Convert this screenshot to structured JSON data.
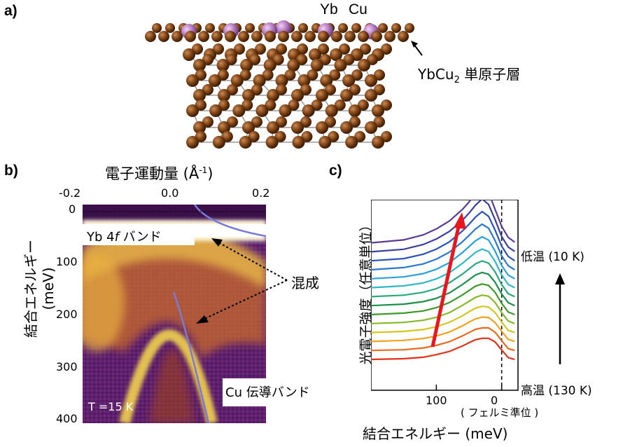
{
  "panel_a": {
    "label": "a)",
    "element_yb": "Yb",
    "element_cu": "Cu",
    "layer_label_prefix": "YbCu",
    "layer_label_sub": "2",
    "layer_label_suffix": " 単原子層",
    "colors": {
      "yb": "#a05aa8",
      "cu": "#8b4a1c"
    }
  },
  "panel_b": {
    "label": "b)",
    "x_axis_title": "電子運動量 (Å",
    "x_axis_unit_sup": "-1",
    "x_axis_close": ")",
    "y_axis_title": "結合エネルギー (meV)",
    "x_ticks": [
      "-0.2",
      "0.0",
      "0.2"
    ],
    "y_ticks": [
      "0",
      "100",
      "200",
      "300",
      "400"
    ],
    "yb_band_prefix": "Yb 4",
    "yb_band_italic": "f",
    "yb_band_suffix": " バンド",
    "hybrid_label": "混成",
    "temperature": "T =15 K",
    "cu_band": "Cu 伝導バンド"
  },
  "panel_c": {
    "label": "c)",
    "y_axis_title": "光電子強度（任意単位）",
    "x_axis_title": "結合エネルギー (meV)",
    "x_ticks": [
      "100",
      "0"
    ],
    "fermi_label": "( フェルミ準位 )",
    "low_temp": "低温 (10 K)",
    "high_temp": "高温 (130 K)"
  },
  "chart_data": {
    "type": "line",
    "title": "",
    "xlabel": "結合エネルギー (meV)",
    "ylabel": "光電子強度（任意単位）",
    "x": [
      200,
      150,
      120,
      100,
      80,
      60,
      50,
      40,
      30,
      20,
      10,
      0,
      -10,
      -20
    ],
    "x_reversed": true,
    "temperature_range_K": [
      10,
      130
    ],
    "series": [
      {
        "color": "#5b3b94",
        "values": [
          1.0,
          1.08,
          1.22,
          1.38,
          1.6,
          1.92,
          2.12,
          2.36,
          2.55,
          2.38,
          1.92,
          1.45,
          1.15,
          1.02
        ]
      },
      {
        "color": "#3a3f9e",
        "values": [
          1.0,
          1.07,
          1.2,
          1.35,
          1.56,
          1.87,
          2.06,
          2.28,
          2.45,
          2.3,
          1.88,
          1.42,
          1.13,
          1.01
        ]
      },
      {
        "color": "#2a52b8",
        "values": [
          1.0,
          1.06,
          1.18,
          1.32,
          1.52,
          1.82,
          2.0,
          2.2,
          2.35,
          2.22,
          1.84,
          1.4,
          1.12,
          1.0
        ]
      },
      {
        "color": "#2a78cc",
        "values": [
          1.0,
          1.06,
          1.16,
          1.29,
          1.48,
          1.77,
          1.94,
          2.12,
          2.25,
          2.14,
          1.8,
          1.38,
          1.11,
          1.0
        ]
      },
      {
        "color": "#2aa0dc",
        "values": [
          1.0,
          1.05,
          1.14,
          1.26,
          1.44,
          1.72,
          1.88,
          2.04,
          2.15,
          2.06,
          1.76,
          1.36,
          1.1,
          1.0
        ]
      },
      {
        "color": "#2fb8c8",
        "values": [
          1.0,
          1.05,
          1.13,
          1.24,
          1.41,
          1.67,
          1.82,
          1.97,
          2.06,
          1.99,
          1.72,
          1.35,
          1.09,
          1.0
        ]
      },
      {
        "color": "#2aa87a",
        "values": [
          1.0,
          1.04,
          1.12,
          1.22,
          1.38,
          1.62,
          1.76,
          1.9,
          1.98,
          1.92,
          1.68,
          1.33,
          1.08,
          1.0
        ]
      },
      {
        "color": "#1e8f4a",
        "values": [
          1.0,
          1.04,
          1.11,
          1.2,
          1.35,
          1.58,
          1.71,
          1.84,
          1.91,
          1.86,
          1.64,
          1.32,
          1.08,
          1.0
        ]
      },
      {
        "color": "#3c9a2a",
        "values": [
          1.0,
          1.04,
          1.1,
          1.19,
          1.33,
          1.54,
          1.66,
          1.78,
          1.84,
          1.8,
          1.61,
          1.31,
          1.07,
          1.0
        ]
      },
      {
        "color": "#86b82a",
        "values": [
          1.0,
          1.03,
          1.09,
          1.17,
          1.3,
          1.5,
          1.61,
          1.72,
          1.78,
          1.75,
          1.58,
          1.3,
          1.07,
          1.0
        ]
      },
      {
        "color": "#d8c41e",
        "values": [
          1.0,
          1.03,
          1.08,
          1.16,
          1.28,
          1.46,
          1.57,
          1.67,
          1.72,
          1.7,
          1.55,
          1.29,
          1.06,
          1.0
        ]
      },
      {
        "color": "#f0a21e",
        "values": [
          1.0,
          1.03,
          1.08,
          1.15,
          1.26,
          1.43,
          1.53,
          1.62,
          1.67,
          1.66,
          1.52,
          1.28,
          1.06,
          1.0
        ]
      },
      {
        "color": "#ec6a1e",
        "values": [
          1.0,
          1.02,
          1.07,
          1.14,
          1.24,
          1.4,
          1.49,
          1.58,
          1.62,
          1.62,
          1.5,
          1.27,
          1.05,
          1.0
        ]
      },
      {
        "color": "#e03218",
        "values": [
          1.0,
          1.02,
          1.06,
          1.13,
          1.22,
          1.37,
          1.46,
          1.54,
          1.58,
          1.58,
          1.48,
          1.26,
          1.05,
          1.0
        ]
      }
    ]
  }
}
